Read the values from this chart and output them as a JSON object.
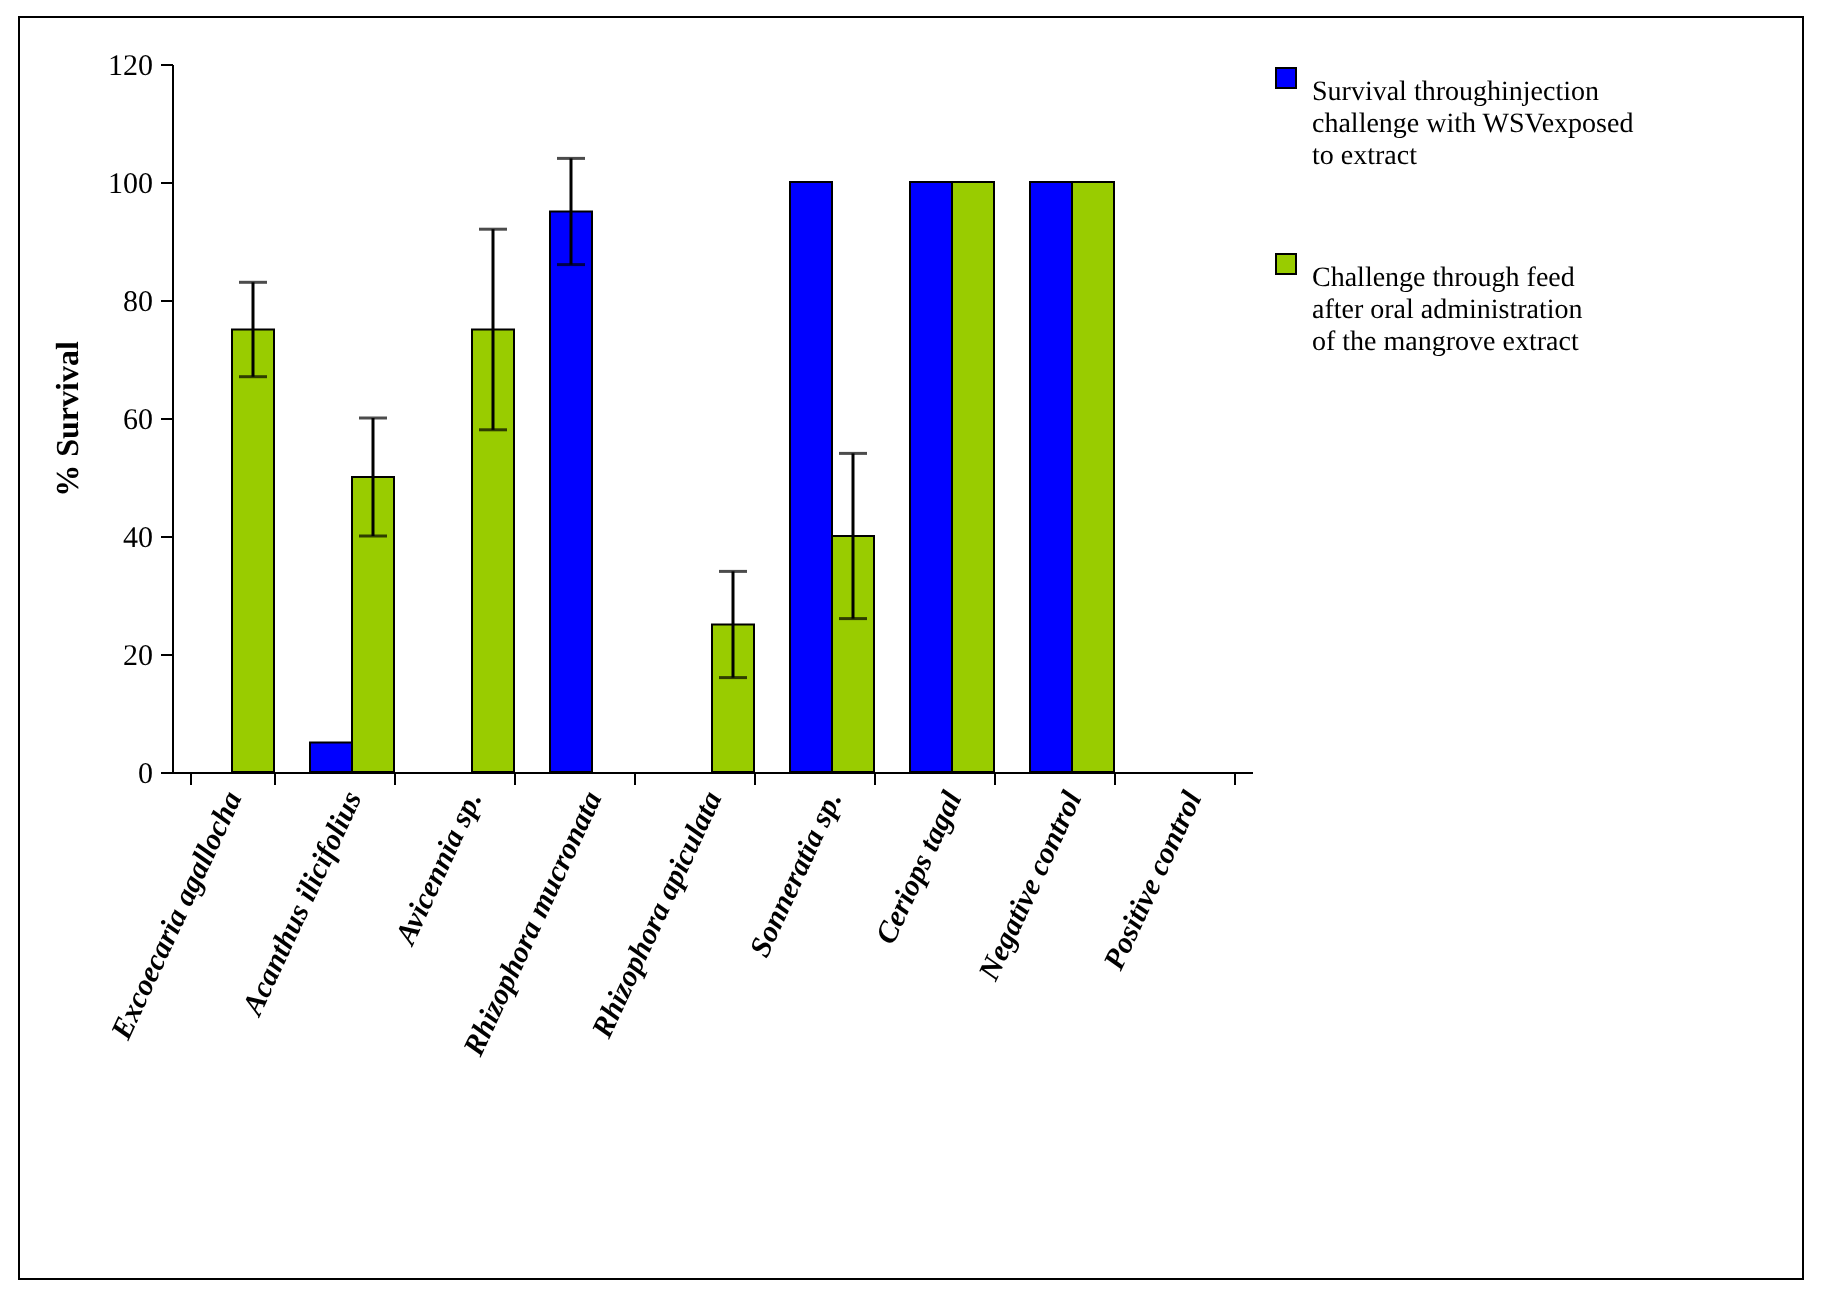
{
  "chart_data": {
    "type": "bar",
    "ylabel": "% Survival",
    "categories": [
      "Excoecaria agallocha",
      "Acanthus ilicifolius",
      "Avicennia sp.",
      "Rhizophora mucronata",
      "Rhizophora apiculata",
      "Sonneratia sp.",
      "Ceriops tagal",
      "Negative control",
      "Positive control"
    ],
    "series": [
      {
        "name": "Survival throughinjection challenge with WSVexposed to extract",
        "color": "#0000ff",
        "values": [
          null,
          5,
          null,
          95,
          null,
          100,
          100,
          100,
          null
        ],
        "errors": [
          null,
          null,
          null,
          9,
          null,
          null,
          null,
          null,
          null
        ]
      },
      {
        "name": "Challenge through  feed after oral administration of the mangrove extract",
        "color": "#99cc00",
        "values": [
          75,
          50,
          75,
          null,
          25,
          40,
          100,
          100,
          null
        ],
        "errors": [
          8,
          10,
          17,
          null,
          9,
          14,
          null,
          null,
          null
        ]
      }
    ],
    "ylim": [
      0,
      120
    ],
    "yticks": [
      0,
      20,
      40,
      60,
      80,
      100,
      120
    ],
    "grid": false,
    "legend": "right"
  }
}
